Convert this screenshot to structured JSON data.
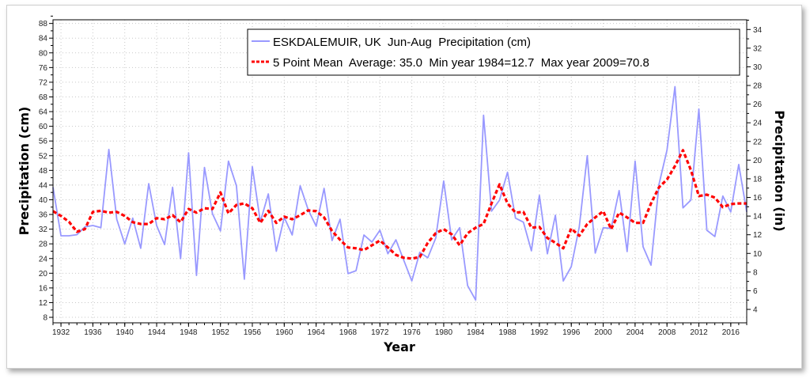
{
  "chart_data": {
    "type": "line",
    "title": "",
    "xlabel": "Year",
    "ylabel": "Precipitation (cm)",
    "y2label": "Precipitation (in)",
    "xlim": [
      1931,
      2018
    ],
    "ylim": [
      6.5,
      89
    ],
    "y2lim": [
      2.56,
      35.04
    ],
    "grid": true,
    "legend_position": "top-right",
    "x_ticks": [
      1932,
      1936,
      1940,
      1944,
      1948,
      1952,
      1956,
      1960,
      1964,
      1968,
      1972,
      1976,
      1980,
      1984,
      1988,
      1992,
      1996,
      2000,
      2004,
      2008,
      2012,
      2016
    ],
    "y_ticks": [
      8,
      12,
      16,
      20,
      24,
      28,
      32,
      36,
      40,
      44,
      48,
      52,
      56,
      60,
      64,
      68,
      72,
      76,
      80,
      84,
      88
    ],
    "y2_ticks": [
      4,
      6,
      8,
      10,
      12,
      14,
      16,
      18,
      20,
      22,
      24,
      26,
      28,
      30,
      32,
      34
    ],
    "x": [
      1931,
      1932,
      1933,
      1934,
      1935,
      1936,
      1937,
      1938,
      1939,
      1940,
      1941,
      1942,
      1943,
      1944,
      1945,
      1946,
      1947,
      1948,
      1949,
      1950,
      1951,
      1952,
      1953,
      1954,
      1955,
      1956,
      1957,
      1958,
      1959,
      1960,
      1961,
      1962,
      1963,
      1964,
      1965,
      1966,
      1967,
      1968,
      1969,
      1970,
      1971,
      1972,
      1973,
      1974,
      1975,
      1976,
      1977,
      1978,
      1979,
      1980,
      1981,
      1982,
      1983,
      1984,
      1985,
      1986,
      1987,
      1988,
      1989,
      1990,
      1991,
      1992,
      1993,
      1994,
      1995,
      1996,
      1997,
      1998,
      1999,
      2000,
      2001,
      2002,
      2003,
      2004,
      2005,
      2006,
      2007,
      2008,
      2009,
      2010,
      2011,
      2012,
      2013,
      2014,
      2015,
      2016,
      2017,
      2018
    ],
    "series": [
      {
        "name": "ESKDALEMUIR, UK  Jun-Aug  Precipitation (cm)",
        "color": "#9999ff",
        "style": "solid",
        "values": [
          43.4,
          30.2,
          30.2,
          30.5,
          32.6,
          33.0,
          32.4,
          53.7,
          34.7,
          28.0,
          35.0,
          26.8,
          44.4,
          33.0,
          27.8,
          43.4,
          24.0,
          52.8,
          19.4,
          48.8,
          36.2,
          31.5,
          50.5,
          43.8,
          18.4,
          49.0,
          34.0,
          41.6,
          26.0,
          35.2,
          30.4,
          43.8,
          37.3,
          32.8,
          43.1,
          28.9,
          34.7,
          19.9,
          20.7,
          30.4,
          28.5,
          31.7,
          25.3,
          29.1,
          23.5,
          17.9,
          25.7,
          24.2,
          29.6,
          45.1,
          29.1,
          32.4,
          16.6,
          12.7,
          63.0,
          36.9,
          39.9,
          47.5,
          35.0,
          33.9,
          26.1,
          41.2,
          25.3,
          35.8,
          17.9,
          21.8,
          32.6,
          52.0,
          25.5,
          32.4,
          32.2,
          42.5,
          25.9,
          50.5,
          27.2,
          22.2,
          44.2,
          53.5,
          70.8,
          37.8,
          39.9,
          64.7,
          31.7,
          30.0,
          41.0,
          36.7,
          49.6,
          36.7
        ]
      },
      {
        "name": "5 Point Mean  Average: 35.0  Min year 1984=12.7  Max year 2009=70.8",
        "color": "#ff0000",
        "style": "dashed",
        "values": [
          36.9,
          35.6,
          34.0,
          31.3,
          32.0,
          36.7,
          37.0,
          36.5,
          36.7,
          35.6,
          33.9,
          33.4,
          33.4,
          35.0,
          34.7,
          35.8,
          33.9,
          37.5,
          36.5,
          37.7,
          37.5,
          42.0,
          36.3,
          38.6,
          39.0,
          37.7,
          33.7,
          37.0,
          33.7,
          35.4,
          34.7,
          35.8,
          37.1,
          36.9,
          35.2,
          31.5,
          29.1,
          27.0,
          26.8,
          26.3,
          27.6,
          28.9,
          27.0,
          25.0,
          24.2,
          24.0,
          24.4,
          28.3,
          30.9,
          32.0,
          30.6,
          27.6,
          30.9,
          32.4,
          33.4,
          39.0,
          44.2,
          39.0,
          36.5,
          36.7,
          32.4,
          32.6,
          29.6,
          28.3,
          26.8,
          32.2,
          30.2,
          33.4,
          35.2,
          36.9,
          32.0,
          36.5,
          35.2,
          33.7,
          33.7,
          39.0,
          43.4,
          45.5,
          49.2,
          53.5,
          48.1,
          41.0,
          41.4,
          40.6,
          38.0,
          38.8,
          39.0,
          39.0
        ]
      }
    ],
    "legend": [
      "ESKDALEMUIR, UK  Jun-Aug  Precipitation (cm)",
      "5 Point Mean  Average: 35.0  Min year 1984=12.7  Max year 2009=70.8"
    ]
  }
}
